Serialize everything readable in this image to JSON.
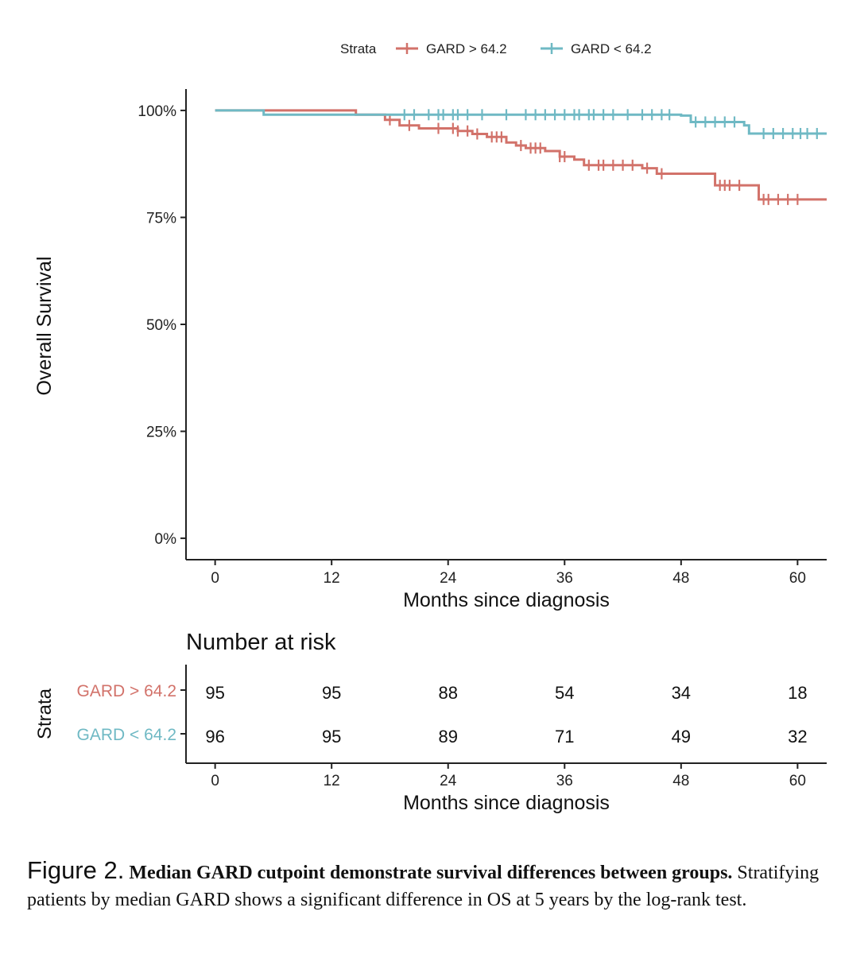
{
  "legend": {
    "title": "Strata",
    "items": [
      {
        "label": "GARD > 64.2",
        "color": "#d2726a"
      },
      {
        "label": "GARD < 64.2",
        "color": "#6fb9c4"
      }
    ]
  },
  "plot": {
    "ylabel": "Overall Survival",
    "xlabel": "Months since diagnosis"
  },
  "risk_table": {
    "title": "Number at risk",
    "ylabel": "Strata",
    "xlabel": "Months since diagnosis",
    "rows": [
      {
        "label": "GARD > 64.2",
        "color": "#d2726a",
        "values": [
          "95",
          "95",
          "88",
          "54",
          "34",
          "18"
        ]
      },
      {
        "label": "GARD < 64.2",
        "color": "#6fb9c4",
        "values": [
          "96",
          "95",
          "89",
          "71",
          "49",
          "32"
        ]
      }
    ]
  },
  "caption": {
    "figure_label": "Figure 2.",
    "bold_text": "Median GARD cutpoint demonstrate survival differences between groups.",
    "body_text": "Stratifying patients by median GARD shows a significant difference in OS at 5 years by the log-rank test."
  },
  "chart_data": {
    "type": "line",
    "title": "",
    "xlabel": "Months since diagnosis",
    "ylabel": "Overall Survival",
    "x_ticks": [
      0,
      12,
      24,
      36,
      48,
      60
    ],
    "y_ticks": [
      0,
      25,
      50,
      75,
      100
    ],
    "y_tick_labels": [
      "0%",
      "25%",
      "50%",
      "75%",
      "100%"
    ],
    "xlim": [
      -3,
      63
    ],
    "ylim": [
      -5,
      105
    ],
    "grid": false,
    "legend_position": "top",
    "series": [
      {
        "name": "GARD > 64.2",
        "color": "#d2726a",
        "steps": [
          [
            0,
            100
          ],
          [
            14.5,
            99
          ],
          [
            17.5,
            97.8
          ],
          [
            19,
            96.5
          ],
          [
            21,
            95.8
          ],
          [
            25,
            95.2
          ],
          [
            26.5,
            94.5
          ],
          [
            28,
            93.8
          ],
          [
            30,
            92.5
          ],
          [
            31,
            91.8
          ],
          [
            32,
            91.2
          ],
          [
            34,
            90.5
          ],
          [
            35.5,
            89.2
          ],
          [
            37,
            88.5
          ],
          [
            38,
            87.2
          ],
          [
            44,
            86.5
          ],
          [
            45.5,
            85.2
          ],
          [
            51.5,
            82.5
          ],
          [
            56,
            79.2
          ],
          [
            63,
            79.2
          ]
        ],
        "censored": [
          [
            18,
            97.8
          ],
          [
            20,
            96.5
          ],
          [
            23,
            95.8
          ],
          [
            24.5,
            95.8
          ],
          [
            25,
            95.2
          ],
          [
            26,
            95.2
          ],
          [
            27,
            94.5
          ],
          [
            28.5,
            93.8
          ],
          [
            29,
            93.8
          ],
          [
            29.5,
            93.8
          ],
          [
            31.5,
            91.8
          ],
          [
            32.5,
            91.2
          ],
          [
            33,
            91.2
          ],
          [
            33.5,
            91.2
          ],
          [
            35.5,
            89.2
          ],
          [
            36,
            89.2
          ],
          [
            38.5,
            87.2
          ],
          [
            39.5,
            87.2
          ],
          [
            40,
            87.2
          ],
          [
            41,
            87.2
          ],
          [
            42,
            87.2
          ],
          [
            43,
            87.2
          ],
          [
            44.5,
            86.5
          ],
          [
            46,
            85.2
          ],
          [
            52,
            82.5
          ],
          [
            52.5,
            82.5
          ],
          [
            53,
            82.5
          ],
          [
            54,
            82.5
          ],
          [
            56.5,
            79.2
          ],
          [
            57,
            79.2
          ],
          [
            58,
            79.2
          ],
          [
            59,
            79.2
          ],
          [
            60,
            79.2
          ]
        ]
      },
      {
        "name": "GARD < 64.2",
        "color": "#6fb9c4",
        "steps": [
          [
            0,
            100
          ],
          [
            5,
            99
          ],
          [
            48,
            98.8
          ],
          [
            49,
            97.3
          ],
          [
            54.5,
            96.5
          ],
          [
            55,
            94.6
          ],
          [
            63,
            94.6
          ]
        ],
        "censored": [
          [
            19.5,
            99
          ],
          [
            20.5,
            99
          ],
          [
            22,
            99
          ],
          [
            23,
            99
          ],
          [
            23.5,
            99
          ],
          [
            24.5,
            99
          ],
          [
            25,
            99
          ],
          [
            26,
            99
          ],
          [
            27.5,
            99
          ],
          [
            30,
            99
          ],
          [
            32,
            99
          ],
          [
            33,
            99
          ],
          [
            34,
            99
          ],
          [
            35,
            99
          ],
          [
            36,
            99
          ],
          [
            37,
            99
          ],
          [
            37.5,
            99
          ],
          [
            38.5,
            99
          ],
          [
            39,
            99
          ],
          [
            40,
            99
          ],
          [
            41,
            99
          ],
          [
            42.5,
            99
          ],
          [
            44,
            99
          ],
          [
            45,
            99
          ],
          [
            46,
            99
          ],
          [
            46.8,
            99
          ],
          [
            49.5,
            97.3
          ],
          [
            50.5,
            97.3
          ],
          [
            51.5,
            97.3
          ],
          [
            52.5,
            97.3
          ],
          [
            53.5,
            97.3
          ],
          [
            56.5,
            94.6
          ],
          [
            57.5,
            94.6
          ],
          [
            58.5,
            94.6
          ],
          [
            59.5,
            94.6
          ],
          [
            60.3,
            94.6
          ],
          [
            61,
            94.6
          ],
          [
            62,
            94.6
          ]
        ]
      }
    ]
  }
}
